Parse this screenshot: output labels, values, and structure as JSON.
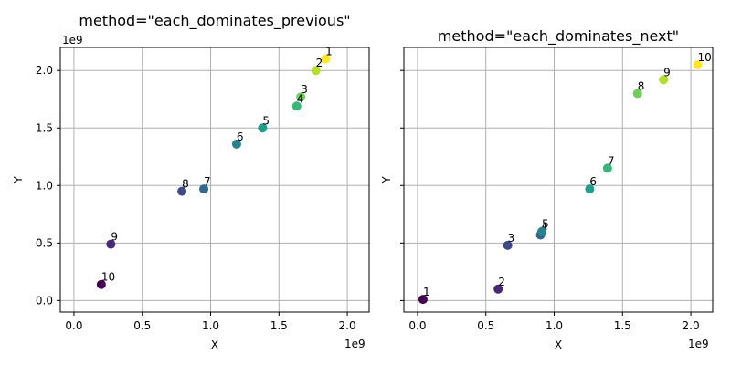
{
  "chart_data": [
    {
      "type": "scatter",
      "title": "method=\"each_dominates_previous\"",
      "xlabel": "X",
      "ylabel": "Y",
      "x_offset_label": "1e9",
      "y_offset_label": "1e9",
      "xlim": [
        -0.1,
        2.16
      ],
      "ylim": [
        -0.1,
        2.2
      ],
      "xticks": [
        0.0,
        0.5,
        1.0,
        1.5,
        2.0
      ],
      "xtick_labels": [
        "0.0",
        "0.5",
        "1.0",
        "1.5",
        "2.0"
      ],
      "yticks": [
        0.0,
        0.5,
        1.0,
        1.5,
        2.0
      ],
      "ytick_labels": [
        "0.0",
        "0.5",
        "1.0",
        "1.5",
        "2.0"
      ],
      "grid": true,
      "points": [
        {
          "label": "1",
          "x": 1.84,
          "y": 2.1,
          "color": "#fde725"
        },
        {
          "label": "2",
          "x": 1.77,
          "y": 2.0,
          "color": "#b5de2b"
        },
        {
          "label": "3",
          "x": 1.66,
          "y": 1.77,
          "color": "#6ece58"
        },
        {
          "label": "4",
          "x": 1.63,
          "y": 1.69,
          "color": "#35b779"
        },
        {
          "label": "5",
          "x": 1.38,
          "y": 1.5,
          "color": "#1f9e89"
        },
        {
          "label": "6",
          "x": 1.19,
          "y": 1.36,
          "color": "#26828e"
        },
        {
          "label": "7",
          "x": 0.95,
          "y": 0.97,
          "color": "#31688e"
        },
        {
          "label": "8",
          "x": 0.79,
          "y": 0.95,
          "color": "#3e4989"
        },
        {
          "label": "9",
          "x": 0.27,
          "y": 0.49,
          "color": "#482878"
        },
        {
          "label": "10",
          "x": 0.2,
          "y": 0.14,
          "color": "#440154"
        }
      ]
    },
    {
      "type": "scatter",
      "title": "method=\"each_dominates_next\"",
      "xlabel": "X",
      "ylabel": "Y",
      "x_offset_label": "1e9",
      "xlim": [
        -0.1,
        2.16
      ],
      "ylim": [
        -0.1,
        2.2
      ],
      "xticks": [
        0.0,
        0.5,
        1.0,
        1.5,
        2.0
      ],
      "xtick_labels": [
        "0.0",
        "0.5",
        "1.0",
        "1.5",
        "2.0"
      ],
      "yticks": [
        0.0,
        0.5,
        1.0,
        1.5,
        2.0
      ],
      "ytick_labels": [],
      "grid": true,
      "points": [
        {
          "label": "1",
          "x": 0.04,
          "y": 0.01,
          "color": "#440154"
        },
        {
          "label": "2",
          "x": 0.59,
          "y": 0.1,
          "color": "#482878"
        },
        {
          "label": "3",
          "x": 0.66,
          "y": 0.48,
          "color": "#3e4989"
        },
        {
          "label": "4",
          "x": 0.9,
          "y": 0.57,
          "color": "#31688e"
        },
        {
          "label": "5",
          "x": 0.91,
          "y": 0.6,
          "color": "#26828e"
        },
        {
          "label": "6",
          "x": 1.26,
          "y": 0.97,
          "color": "#1f9e89"
        },
        {
          "label": "7",
          "x": 1.39,
          "y": 1.15,
          "color": "#35b779"
        },
        {
          "label": "8",
          "x": 1.61,
          "y": 1.8,
          "color": "#6ece58"
        },
        {
          "label": "9",
          "x": 1.8,
          "y": 1.92,
          "color": "#b5de2b"
        },
        {
          "label": "10",
          "x": 2.05,
          "y": 2.05,
          "color": "#fde725"
        }
      ]
    }
  ]
}
